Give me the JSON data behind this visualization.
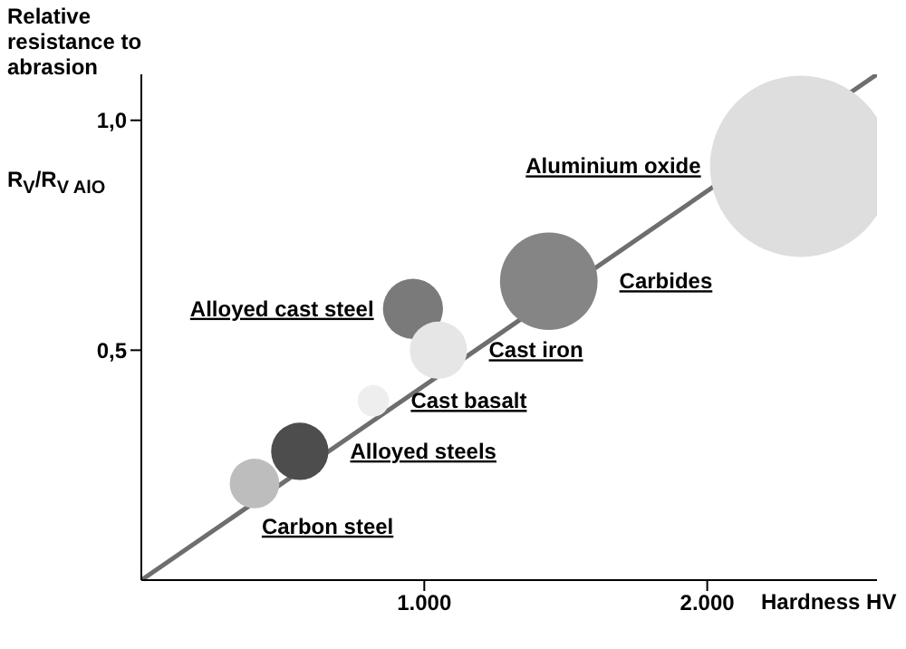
{
  "chart_data": {
    "type": "bubble",
    "xlabel": "Hardness HV",
    "ylabel": "Relative resistance to abrasion",
    "xlim": [
      0,
      2600
    ],
    "ylim": [
      0,
      1.1
    ],
    "xticks": [
      {
        "value": 1000,
        "label": "1.000"
      },
      {
        "value": 2000,
        "label": "2.000"
      }
    ],
    "yticks": [
      {
        "value": 0.5,
        "label": "0,5"
      },
      {
        "value": 1,
        "label": "1,0"
      }
    ],
    "series": [
      {
        "name": "Carbon steel",
        "color": "#bdbdbd",
        "x": [
          400
        ],
        "values": [
          0.21
        ],
        "sizes": [
          0.075
        ]
      },
      {
        "name": "Alloyed steels",
        "color": "#4d4d4d",
        "x": [
          560
        ],
        "values": [
          0.28
        ],
        "sizes": [
          0.1
        ]
      },
      {
        "name": "Cast basalt",
        "color": "#eeeeee",
        "x": [
          820
        ],
        "values": [
          0.39
        ],
        "sizes": [
          0.03
        ]
      },
      {
        "name": "Alloyed cast steel",
        "color": "#7a7a7a",
        "x": [
          960
        ],
        "values": [
          0.59
        ],
        "sizes": [
          0.11
        ]
      },
      {
        "name": "Cast iron",
        "color": "#e6e6e6",
        "x": [
          1050
        ],
        "values": [
          0.5
        ],
        "sizes": [
          0.1
        ]
      },
      {
        "name": "Carbides",
        "color": "#858585",
        "x": [
          1440
        ],
        "values": [
          0.65
        ],
        "sizes": [
          0.29
        ]
      },
      {
        "name": "Aluminium oxide",
        "color": "#dedede",
        "x": [
          2330
        ],
        "values": [
          0.9
        ],
        "sizes": [
          1
        ]
      },
      {
        "type": "line",
        "color": "#6e6e6e",
        "x": [
          0,
          2600
        ],
        "values": [
          0,
          1.1
        ]
      }
    ],
    "annotations": [
      "R$_{V}$/R$_{V AlO}$"
    ]
  }
}
